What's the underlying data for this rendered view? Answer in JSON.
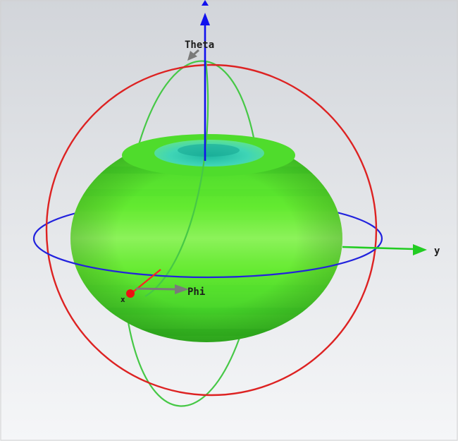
{
  "labels": {
    "theta": "Theta",
    "phi": "Phi",
    "y_axis": "y",
    "x_axis": "x"
  },
  "colors": {
    "background_top": "#d3d6db",
    "background_bottom": "#f4f5f7",
    "pattern_body": "#5ee62c",
    "pattern_highlight": "#9cf56a",
    "pattern_shadow": "#2fb81e",
    "pattern_top_dimple": "#45d7bc",
    "phi_circle": "#2222dd",
    "theta_circle": "#dd2222",
    "meridian_circle": "#44cc44",
    "z_axis": "#1111ee",
    "y_axis": "#22cc22",
    "x_axis": "#ff2222",
    "marker_arrow": "#7a7a7a"
  },
  "icons": {
    "theta_direction": "grey-arrow-icon",
    "phi_direction": "grey-arrow-icon",
    "origin_marker": "red-dot-icon"
  }
}
